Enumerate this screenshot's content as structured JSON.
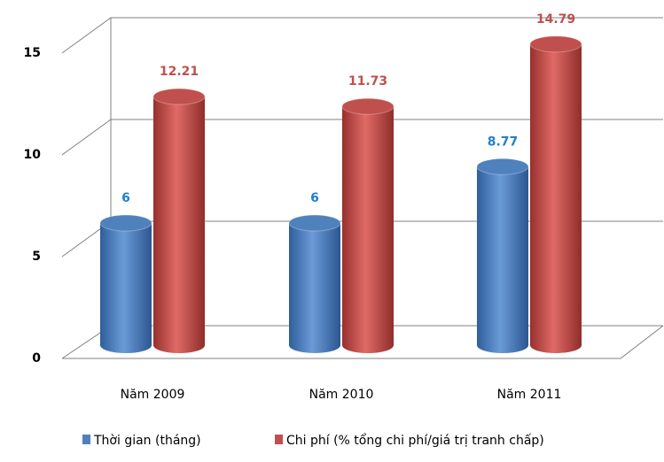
{
  "chart_data": {
    "type": "bar3d",
    "categories": [
      "Năm 2009",
      "Năm 2010",
      "Năm 2011"
    ],
    "series": [
      {
        "name": "Thời gian (tháng)",
        "color": "#4f81bd",
        "label_color": "#1f7fd0",
        "values": [
          6,
          6,
          8.77
        ]
      },
      {
        "name": "Chi phí (% tổng chi phí/giá trị tranh chấp)",
        "color": "#c0504d",
        "label_color": "#c0504d",
        "values": [
          12.21,
          11.73,
          14.79
        ]
      }
    ],
    "ylim": [
      0,
      15
    ],
    "yticks": [
      0,
      5,
      10,
      15
    ],
    "grid": true,
    "legend": "bottom"
  }
}
